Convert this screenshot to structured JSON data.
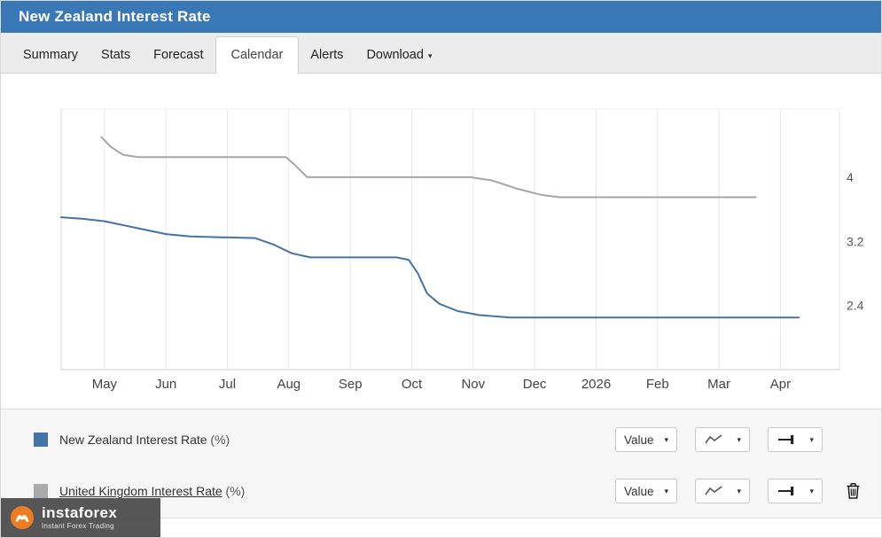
{
  "header": {
    "title": "New Zealand Interest Rate"
  },
  "tabs": [
    {
      "label": "Summary",
      "active": false
    },
    {
      "label": "Stats",
      "active": false
    },
    {
      "label": "Forecast",
      "active": false
    },
    {
      "label": "Calendar",
      "active": true
    },
    {
      "label": "Alerts",
      "active": false
    },
    {
      "label": "Download",
      "active": false,
      "has_dropdown": true
    }
  ],
  "icons": {
    "caret_down": "▾"
  },
  "chart_data": {
    "type": "line",
    "title": "",
    "x_labels": [
      "May",
      "Jun",
      "Jul",
      "Aug",
      "Sep",
      "Oct",
      "Nov",
      "Dec",
      "2026",
      "Feb",
      "Mar",
      "Apr"
    ],
    "xlim": [
      -0.705,
      11.96
    ],
    "ylim": [
      1.6,
      4.85
    ],
    "y_ticks": [
      2.4,
      3.2,
      4
    ],
    "y_axis_side": "right",
    "grid": "vertical",
    "legend_position": "bottom-panel",
    "series": [
      {
        "name": "New Zealand Interest Rate (%)",
        "color": "#4572a7",
        "points": [
          [
            -0.705,
            3.5
          ],
          [
            -0.35,
            3.48
          ],
          [
            0,
            3.45
          ],
          [
            0.5,
            3.37
          ],
          [
            1.0,
            3.29
          ],
          [
            1.4,
            3.26
          ],
          [
            1.9,
            3.25
          ],
          [
            2.45,
            3.24
          ],
          [
            2.75,
            3.16
          ],
          [
            3.05,
            3.05
          ],
          [
            3.35,
            3.0
          ],
          [
            4.75,
            3.0
          ],
          [
            4.95,
            2.97
          ],
          [
            5.1,
            2.8
          ],
          [
            5.25,
            2.55
          ],
          [
            5.45,
            2.42
          ],
          [
            5.75,
            2.33
          ],
          [
            6.1,
            2.28
          ],
          [
            6.6,
            2.25
          ],
          [
            11.3,
            2.25
          ]
        ]
      },
      {
        "name": "United Kingdom Interest Rate (%)",
        "color": "#a6a6a6",
        "points": [
          [
            -0.05,
            4.5
          ],
          [
            0.1,
            4.38
          ],
          [
            0.3,
            4.28
          ],
          [
            0.55,
            4.25
          ],
          [
            2.95,
            4.25
          ],
          [
            3.1,
            4.15
          ],
          [
            3.3,
            4.0
          ],
          [
            5.95,
            4.0
          ],
          [
            6.3,
            3.96
          ],
          [
            6.7,
            3.86
          ],
          [
            7.1,
            3.78
          ],
          [
            7.4,
            3.75
          ],
          [
            10.6,
            3.75
          ]
        ]
      }
    ]
  },
  "legend": {
    "rows": [
      {
        "label": "New Zealand Interest Rate",
        "unit": "(%)",
        "color": "#4572a7",
        "value_label": "Value",
        "deletable": false
      },
      {
        "label": "United Kingdom Interest Rate",
        "unit": "(%)",
        "color": "#aaaaaa",
        "value_label": "Value",
        "deletable": true
      }
    ]
  },
  "watermark": {
    "brand": "instaforex",
    "tagline": "Instant Forex Trading"
  }
}
